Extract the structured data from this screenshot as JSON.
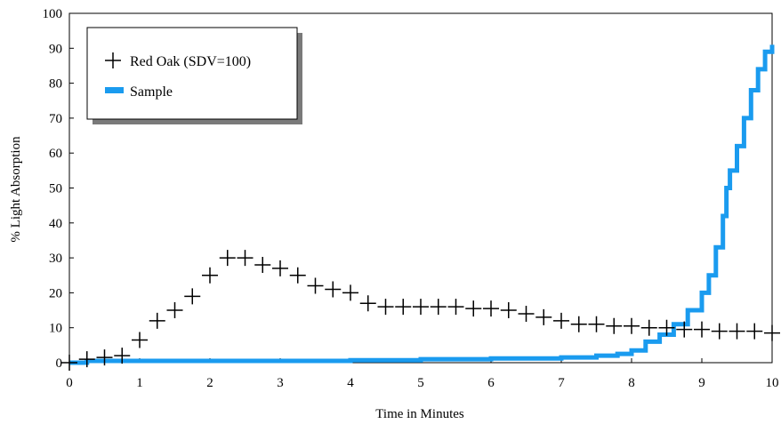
{
  "chart_data": {
    "type": "line",
    "title": "",
    "xlabel": "Time in Minutes",
    "ylabel": "% Light Absorption",
    "xlim": [
      0,
      10
    ],
    "ylim": [
      0,
      100
    ],
    "xticks": [
      "0",
      "1",
      "2",
      "3",
      "4",
      "5",
      "6",
      "7",
      "8",
      "9",
      "10"
    ],
    "yticks": [
      "0",
      "10",
      "20",
      "30",
      "40",
      "50",
      "60",
      "70",
      "80",
      "90",
      "100"
    ],
    "grid": false,
    "legend_position": "top-left",
    "series": [
      {
        "name": "Red Oak (SDV=100)",
        "color": "#000000",
        "marker": "plus",
        "x": [
          0.0,
          0.25,
          0.5,
          0.75,
          1.0,
          1.25,
          1.5,
          1.75,
          2.0,
          2.25,
          2.5,
          2.75,
          3.0,
          3.25,
          3.5,
          3.75,
          4.0,
          4.25,
          4.5,
          4.75,
          5.0,
          5.25,
          5.5,
          5.75,
          6.0,
          6.25,
          6.5,
          6.75,
          7.0,
          7.25,
          7.5,
          7.75,
          8.0,
          8.25,
          8.5,
          8.75,
          9.0,
          9.25,
          9.5,
          9.75,
          10.0
        ],
        "y": [
          0.0,
          1.0,
          1.5,
          2.0,
          6.5,
          12.0,
          15.0,
          19.0,
          25.0,
          30.0,
          30.0,
          28.0,
          27.0,
          25.0,
          22.0,
          21.0,
          20.0,
          17.0,
          16.0,
          16.0,
          16.0,
          16.0,
          16.0,
          15.5,
          15.5,
          15.0,
          14.0,
          13.0,
          12.0,
          11.0,
          11.0,
          10.5,
          10.5,
          10.0,
          10.0,
          9.5,
          9.5,
          9.0,
          9.0,
          9.0,
          8.5
        ]
      },
      {
        "name": "Sample",
        "color": "#1a9bef",
        "marker": "none",
        "x": [
          0.0,
          0.25,
          0.5,
          1.0,
          2.0,
          3.0,
          4.0,
          5.0,
          6.0,
          7.0,
          7.5,
          7.8,
          8.0,
          8.2,
          8.4,
          8.6,
          8.8,
          9.0,
          9.1,
          9.2,
          9.3,
          9.35,
          9.4,
          9.5,
          9.6,
          9.7,
          9.8,
          9.9,
          10.0
        ],
        "y": [
          0.0,
          0.5,
          0.5,
          0.5,
          0.5,
          0.5,
          0.7,
          1.0,
          1.2,
          1.5,
          2.0,
          2.5,
          3.5,
          6.0,
          8.0,
          11.0,
          15.0,
          20.0,
          25.0,
          33.0,
          42.0,
          50.0,
          55.0,
          62.0,
          70.0,
          78.0,
          84.0,
          89.0,
          91.0
        ]
      }
    ]
  }
}
